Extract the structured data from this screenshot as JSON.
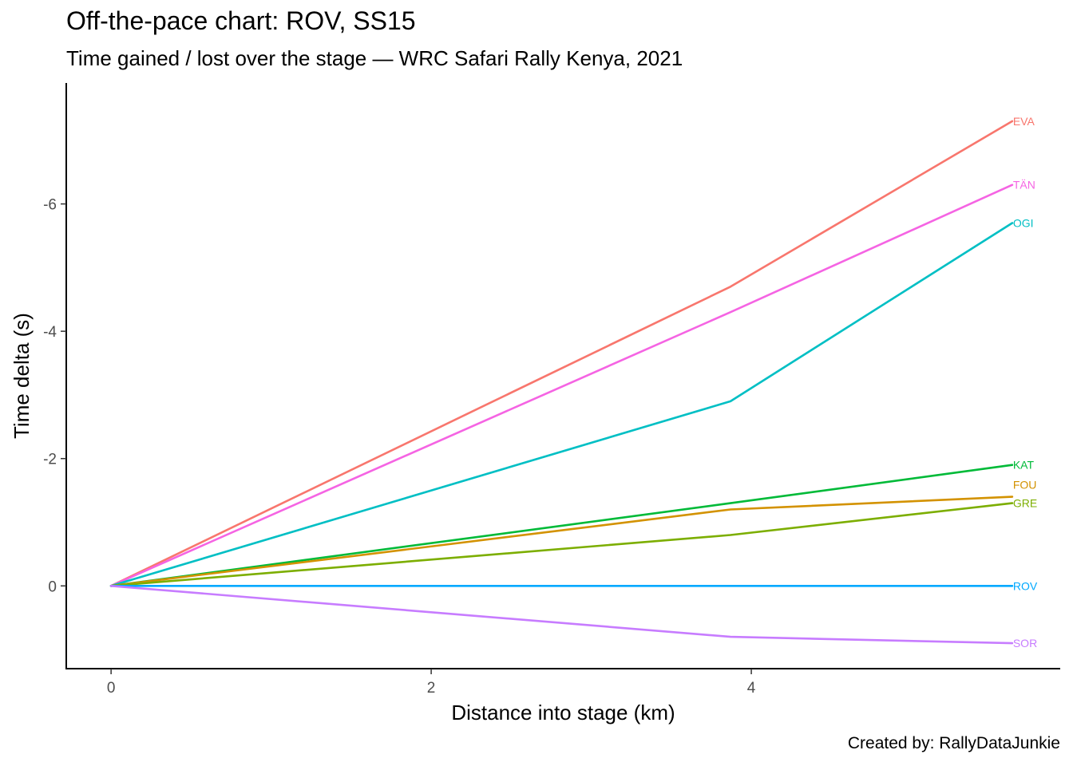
{
  "title": "Off-the-pace chart: ROV, SS15",
  "subtitle": "Time gained / lost over the stage — WRC Safari Rally Kenya, 2021",
  "caption": "Created by: RallyDataJunkie",
  "chart_data": {
    "type": "line",
    "title": "Off-the-pace chart: ROV, SS15",
    "subtitle": "Time gained / lost over the stage — WRC Safari Rally Kenya, 2021",
    "xlabel": "Distance into stage (km)",
    "ylabel": "Time delta (s)",
    "x_ticks": [
      0,
      2,
      4
    ],
    "y_ticks": [
      0,
      -2,
      -4,
      -6
    ],
    "xlim": [
      -0.28,
      5.93
    ],
    "ylim": [
      1.3,
      -7.9
    ],
    "y_reversed": true,
    "grid": false,
    "legend": "none (series labelled at line ends)",
    "series": [
      {
        "name": "EVA",
        "color": "#F8766D",
        "x": [
          0,
          3.87,
          5.63
        ],
        "y": [
          0,
          -4.7,
          -7.3
        ]
      },
      {
        "name": "TÄN",
        "color": "#F564E3",
        "x": [
          0,
          3.87,
          5.63
        ],
        "y": [
          0,
          -4.3,
          -6.3
        ]
      },
      {
        "name": "OGI",
        "color": "#00BFC4",
        "x": [
          0,
          3.87,
          5.63
        ],
        "y": [
          0,
          -2.9,
          -5.7
        ]
      },
      {
        "name": "KAT",
        "color": "#00BA38",
        "x": [
          0,
          3.87,
          5.63
        ],
        "y": [
          0,
          -1.3,
          -1.9
        ]
      },
      {
        "name": "FOU",
        "color": "#D39200",
        "x": [
          0,
          3.87,
          5.63
        ],
        "y": [
          0,
          -1.2,
          -1.4
        ]
      },
      {
        "name": "GRE",
        "color": "#7CAE00",
        "x": [
          0,
          3.87,
          5.63
        ],
        "y": [
          0,
          -0.8,
          -1.3
        ]
      },
      {
        "name": "ROV",
        "color": "#00A9FF",
        "x": [
          0,
          3.87,
          5.63
        ],
        "y": [
          0,
          0,
          0
        ]
      },
      {
        "name": "SOR",
        "color": "#C77CFF",
        "x": [
          0,
          3.87,
          5.63
        ],
        "y": [
          0,
          0.8,
          0.9
        ]
      }
    ]
  }
}
